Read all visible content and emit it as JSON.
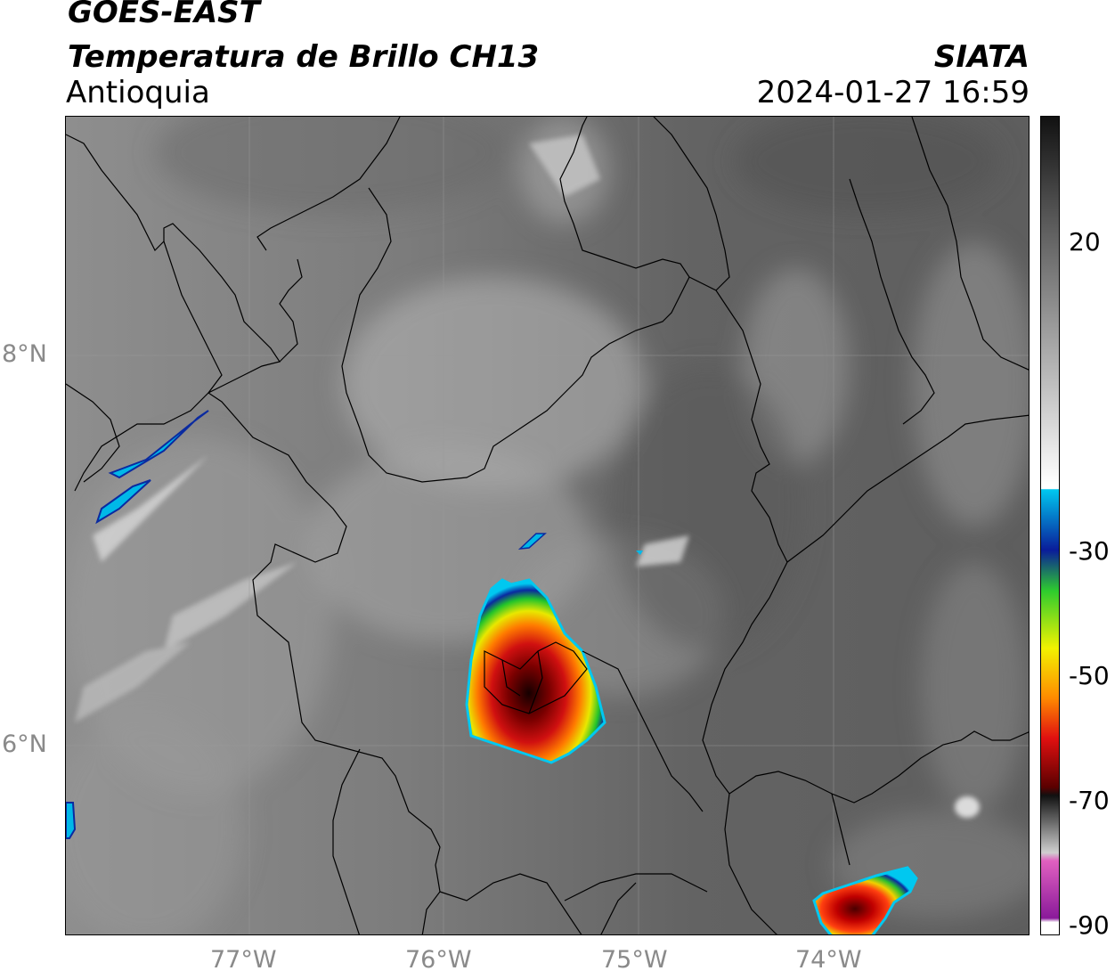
{
  "header": {
    "satellite": "GOES-EAST",
    "product": "Temperatura de Brillo CH13",
    "region": "Antioquia",
    "organization": "SIATA",
    "timestamp": "2024-01-27 16:59"
  },
  "map": {
    "lon_labels": [
      "77°W",
      "76°W",
      "75°W",
      "74°W"
    ],
    "lat_labels": [
      "8°N",
      "6°N"
    ],
    "lon_range": [
      -77.93,
      -73.0
    ],
    "lat_range": [
      5.2,
      9.4
    ],
    "gridlines": true,
    "background": "infrared grayscale satellite imagery"
  },
  "colorbar": {
    "tick_labels": [
      "20",
      "-30",
      "-50",
      "-70",
      "-90"
    ],
    "tick_values": [
      20,
      -30,
      -50,
      -70,
      -90
    ],
    "colors": {
      "black": "#111111",
      "gray_dark": "#555555",
      "gray_light": "#cfcfcf",
      "white": "#ffffff",
      "cyan": "#00c8f0",
      "blue": "#0a1c9a",
      "green": "#2ecc2e",
      "yellow": "#f2f200",
      "orange": "#ff8c00",
      "red": "#e01010",
      "dark_red": "#5a0000",
      "pink": "#e060c0",
      "purple": "#8a1a9a"
    }
  }
}
